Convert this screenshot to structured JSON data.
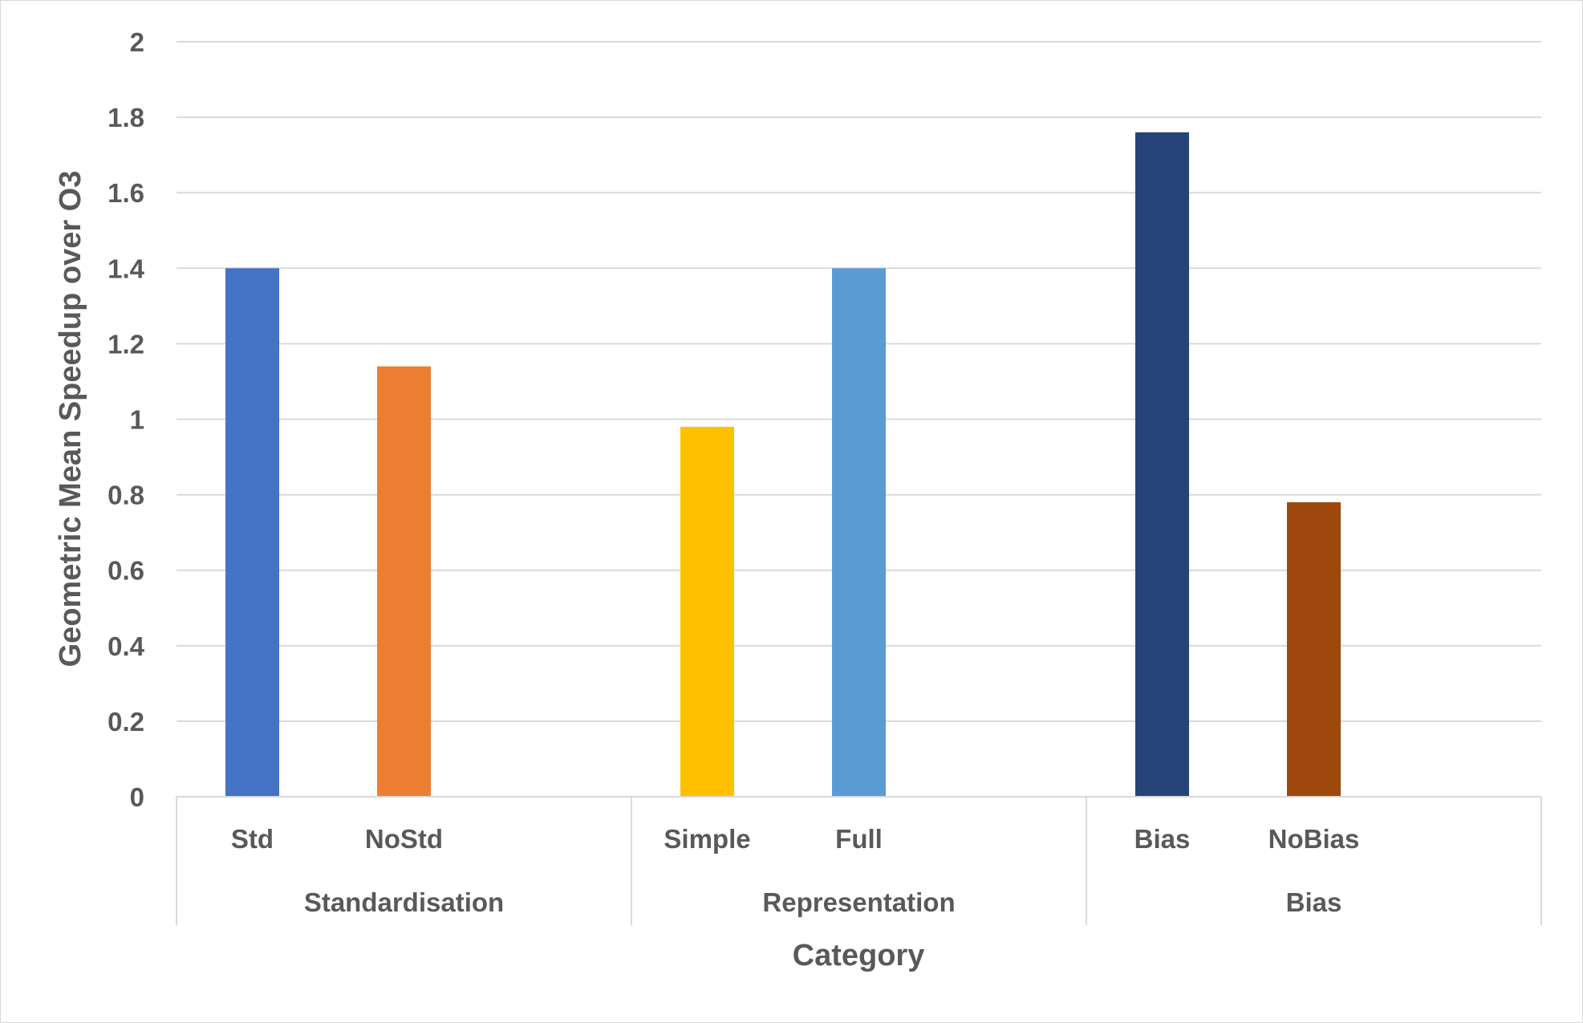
{
  "chart_data": {
    "type": "bar",
    "xlabel": "Category",
    "ylabel": "Geometric Mean Speedup over O3",
    "ylim": [
      0,
      2
    ],
    "ytick_step": 0.2,
    "yticks": [
      "0",
      "0.2",
      "0.4",
      "0.6",
      "0.8",
      "1",
      "1.2",
      "1.4",
      "1.6",
      "1.8",
      "2"
    ],
    "grid": true,
    "legend": "none",
    "groups": [
      {
        "name": "Standardisation",
        "bars": [
          {
            "label": "Std",
            "value": 1.4,
            "color": "#4472C4"
          },
          {
            "label": "NoStd",
            "value": 1.14,
            "color": "#ED7D31"
          }
        ]
      },
      {
        "name": "Representation",
        "bars": [
          {
            "label": "Simple",
            "value": 0.98,
            "color": "#FFC000"
          },
          {
            "label": "Full",
            "value": 1.4,
            "color": "#5B9BD5"
          }
        ]
      },
      {
        "name": "Bias",
        "bars": [
          {
            "label": "Bias",
            "value": 1.76,
            "color": "#264478"
          },
          {
            "label": "NoBias",
            "value": 0.78,
            "color": "#9E480E"
          }
        ]
      }
    ]
  }
}
